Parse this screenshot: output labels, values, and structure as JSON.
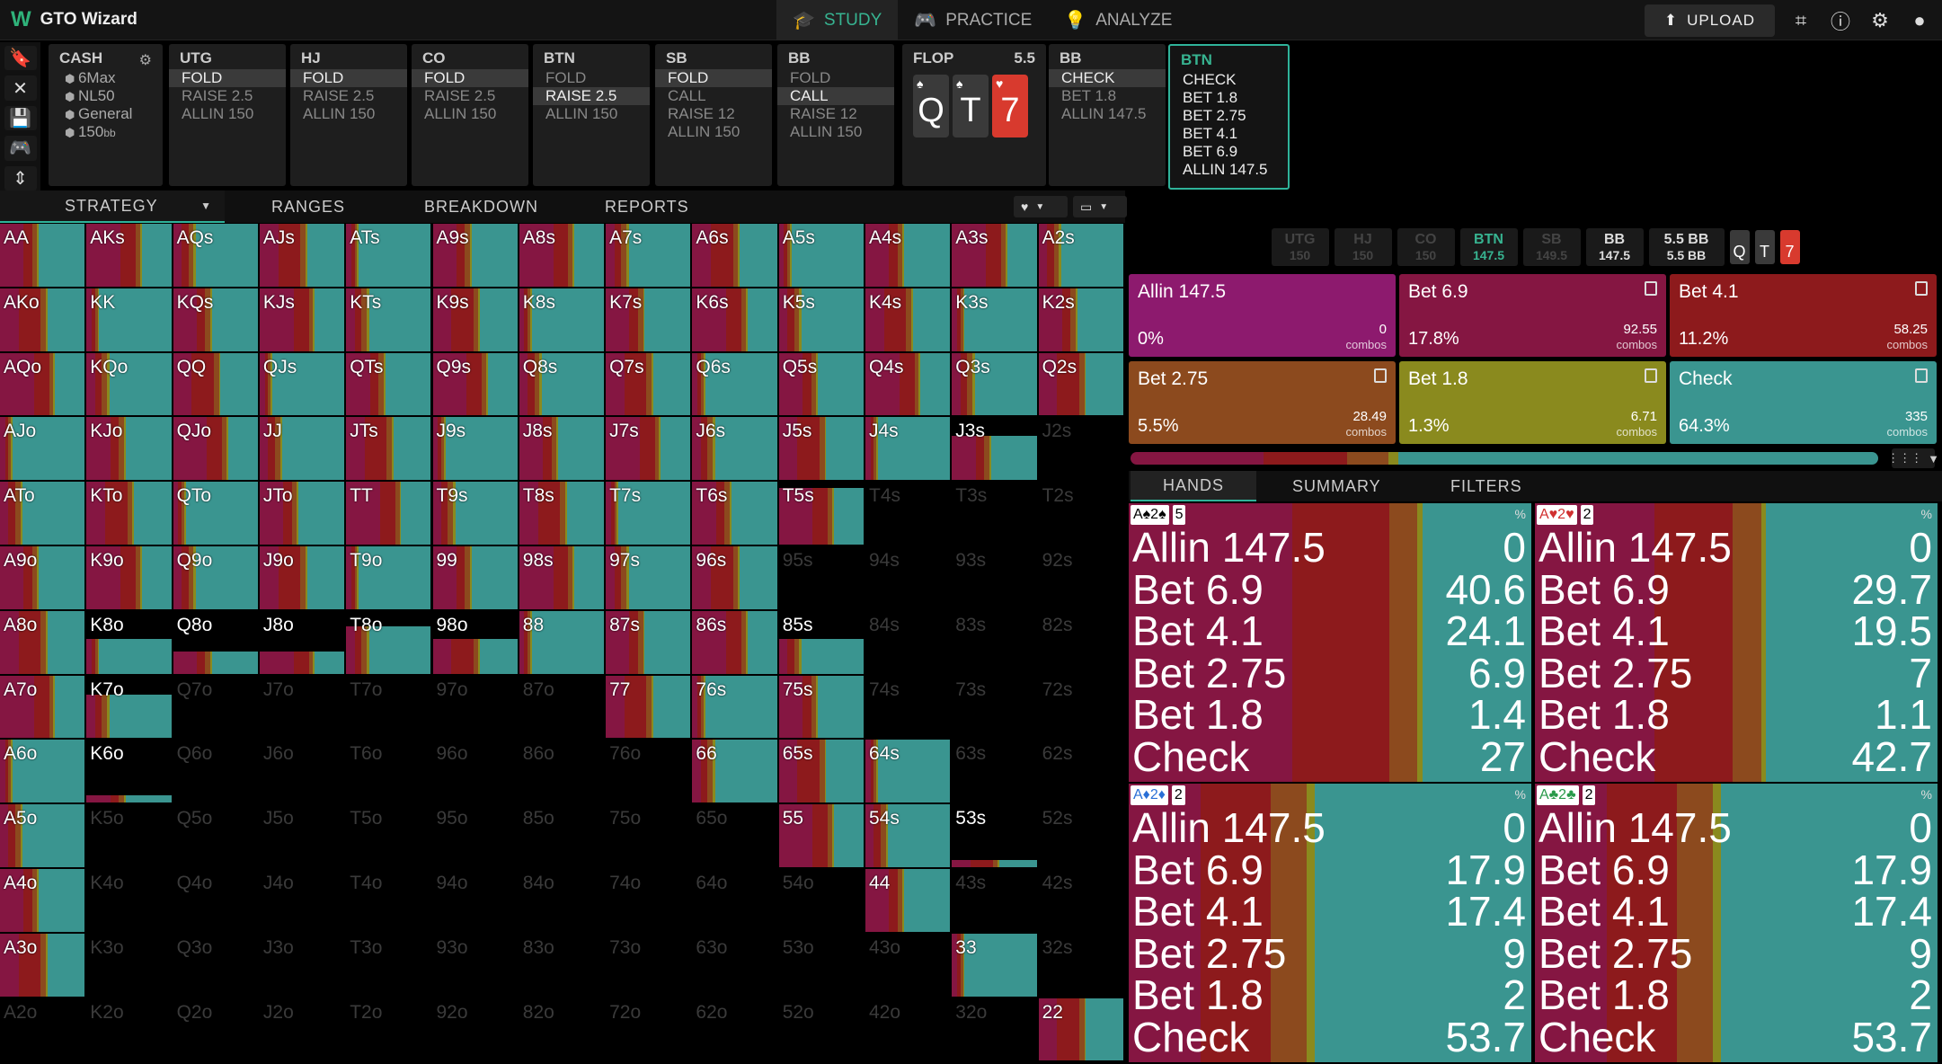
{
  "app": {
    "title": "GTO Wizard",
    "logo": "W"
  },
  "nav": {
    "tabs": [
      {
        "label": "STUDY",
        "icon": "study-cap-icon",
        "active": true
      },
      {
        "label": "PRACTICE",
        "icon": "gamepad-icon",
        "active": false
      },
      {
        "label": "ANALYZE",
        "icon": "bulb-icon",
        "active": false
      }
    ]
  },
  "topright": {
    "upload_label": "UPLOAD"
  },
  "cash": {
    "title": "CASH",
    "items": [
      "6Max",
      "NL50",
      "General",
      "150"
    ],
    "stack_unit": "bb"
  },
  "positions": [
    {
      "name": "UTG",
      "options": [
        "FOLD",
        "RAISE 2.5",
        "ALLIN 150"
      ],
      "selected": 0
    },
    {
      "name": "HJ",
      "options": [
        "FOLD",
        "RAISE 2.5",
        "ALLIN 150"
      ],
      "selected": 0
    },
    {
      "name": "CO",
      "options": [
        "FOLD",
        "RAISE 2.5",
        "ALLIN 150"
      ],
      "selected": 0
    },
    {
      "name": "BTN",
      "options": [
        "FOLD",
        "RAISE 2.5",
        "ALLIN 150"
      ],
      "selected": 1
    },
    {
      "name": "SB",
      "options": [
        "FOLD",
        "CALL",
        "RAISE 12",
        "ALLIN 150"
      ],
      "selected": 0
    },
    {
      "name": "BB",
      "options": [
        "FOLD",
        "CALL",
        "RAISE 12",
        "ALLIN 150"
      ],
      "selected": 1
    }
  ],
  "flop": {
    "label": "FLOP",
    "pot": "5.5",
    "cards": [
      {
        "rank": "Q",
        "suit": "♠",
        "red": false
      },
      {
        "rank": "T",
        "suit": "♠",
        "red": false
      },
      {
        "rank": "7",
        "suit": "♥",
        "red": true
      }
    ]
  },
  "bb_action": {
    "name": "BB",
    "options": [
      "CHECK",
      "BET 1.8",
      "ALLIN 147.5"
    ],
    "selected": 0
  },
  "btn_action": {
    "name": "BTN",
    "options": [
      "CHECK",
      "BET 1.8",
      "BET 2.75",
      "BET 4.1",
      "BET 6.9",
      "ALLIN 147.5"
    ]
  },
  "subtabs": {
    "strategy": "STRATEGY",
    "ranges": "RANGES",
    "breakdown": "BREAKDOWN",
    "reports": "REPORTS"
  },
  "colors": {
    "allin": "#8d1a6e",
    "bet69": "#851642",
    "bet41": "#8d1a1c",
    "bet275": "#8c4a1e",
    "bet18": "#8a8a1e",
    "check": "#3a9590"
  },
  "path": [
    {
      "name": "UTG",
      "v": "150"
    },
    {
      "name": "HJ",
      "v": "150"
    },
    {
      "name": "CO",
      "v": "150"
    },
    {
      "name": "BTN",
      "v": "147.5"
    },
    {
      "name": "SB",
      "v": "149.5"
    },
    {
      "name": "BB",
      "v": "147.5"
    },
    {
      "name": "5.5 BB",
      "v": "5.5 BB"
    }
  ],
  "actions": [
    {
      "name": "Allin 147.5",
      "pct": "0%",
      "combos": "0",
      "color": "#8d1a6e"
    },
    {
      "name": "Bet 6.9",
      "pct": "17.8%",
      "combos": "92.55",
      "color": "#851642"
    },
    {
      "name": "Bet 4.1",
      "pct": "11.2%",
      "combos": "58.25",
      "color": "#8d1a1c"
    },
    {
      "name": "Bet 2.75",
      "pct": "5.5%",
      "combos": "28.49",
      "color": "#8c4a1e"
    },
    {
      "name": "Bet 1.8",
      "pct": "1.3%",
      "combos": "6.71",
      "color": "#8a8a1e"
    },
    {
      "name": "Check",
      "pct": "64.3%",
      "combos": "335",
      "color": "#3a9590"
    }
  ],
  "combos_label": "combos",
  "rtabs": {
    "hands": "HANDS",
    "summary": "SUMMARY",
    "filters": "FILTERS"
  },
  "hands": [
    {
      "title": [
        "A♠2♠",
        "5"
      ],
      "suitcls": "",
      "rows": [
        [
          "Allin 147.5",
          "0"
        ],
        [
          "Bet 6.9",
          "40.6"
        ],
        [
          "Bet 4.1",
          "24.1"
        ],
        [
          "Bet 2.75",
          "6.9"
        ],
        [
          "Bet 1.8",
          "1.4"
        ],
        [
          "Check",
          "27"
        ]
      ],
      "mix": [
        0,
        40.6,
        24.1,
        6.9,
        1.4,
        27
      ]
    },
    {
      "title": [
        "A♥2♥",
        "2"
      ],
      "suitcls": "red",
      "rows": [
        [
          "Allin 147.5",
          "0"
        ],
        [
          "Bet 6.9",
          "29.7"
        ],
        [
          "Bet 4.1",
          "19.5"
        ],
        [
          "Bet 2.75",
          "7"
        ],
        [
          "Bet 1.8",
          "1.1"
        ],
        [
          "Check",
          "42.7"
        ]
      ],
      "mix": [
        0,
        29.7,
        19.5,
        7,
        1.1,
        42.7
      ]
    },
    {
      "title": [
        "A♦2♦",
        "2"
      ],
      "suitcls": "blue",
      "rows": [
        [
          "Allin 147.5",
          "0"
        ],
        [
          "Bet 6.9",
          "17.9"
        ],
        [
          "Bet 4.1",
          "17.4"
        ],
        [
          "Bet 2.75",
          "9"
        ],
        [
          "Bet 1.8",
          "2"
        ],
        [
          "Check",
          "53.7"
        ]
      ],
      "mix": [
        0,
        17.9,
        17.4,
        9,
        2,
        53.7
      ]
    },
    {
      "title": [
        "A♣2♣",
        "2"
      ],
      "suitcls": "grn",
      "rows": [
        [
          "Allin 147.5",
          "0"
        ],
        [
          "Bet 6.9",
          "17.9"
        ],
        [
          "Bet 4.1",
          "17.4"
        ],
        [
          "Bet 2.75",
          "9"
        ],
        [
          "Bet 1.8",
          "2"
        ],
        [
          "Check",
          "53.7"
        ]
      ],
      "mix": [
        0,
        17.9,
        17.4,
        9,
        2,
        53.7
      ]
    }
  ],
  "pct_symbol": "%",
  "grid": {
    "ranks": [
      "A",
      "K",
      "Q",
      "J",
      "T",
      "9",
      "8",
      "7",
      "6",
      "5",
      "4",
      "3",
      "2"
    ],
    "freq": [
      [
        1,
        1,
        1,
        1,
        1,
        1,
        1,
        1,
        1,
        1,
        1,
        1,
        1
      ],
      [
        1,
        1,
        1,
        1,
        1,
        1,
        1,
        1,
        1,
        1,
        1,
        1,
        1
      ],
      [
        1,
        1,
        1,
        1,
        1,
        1,
        1,
        1,
        1,
        1,
        1,
        1,
        1
      ],
      [
        1,
        1,
        1,
        1,
        1,
        1,
        1,
        1,
        1,
        1,
        1,
        0.7,
        0
      ],
      [
        1,
        1,
        1,
        1,
        1,
        1,
        1,
        1,
        1,
        0.9,
        0,
        0,
        0
      ],
      [
        1,
        1,
        1,
        1,
        1,
        1,
        1,
        1,
        1,
        0,
        0,
        0,
        0
      ],
      [
        1,
        0.55,
        0.35,
        0.35,
        0.75,
        0.55,
        1,
        1,
        1,
        0.55,
        0,
        0,
        0
      ],
      [
        1,
        0.7,
        0,
        0,
        0,
        0,
        0,
        1,
        1,
        1,
        0,
        0,
        0
      ],
      [
        1,
        0.12,
        0,
        0,
        0,
        0,
        0,
        0,
        1,
        1,
        1,
        0,
        0
      ],
      [
        1,
        0,
        0,
        0,
        0,
        0,
        0,
        0,
        0,
        1,
        1,
        0.12,
        0
      ],
      [
        1,
        0,
        0,
        0,
        0,
        0,
        0,
        0,
        0,
        0,
        1,
        0,
        0
      ],
      [
        1,
        0,
        0,
        0,
        0,
        0,
        0,
        0,
        0,
        0,
        0,
        1,
        0
      ],
      [
        0,
        0,
        0,
        0,
        0,
        0,
        0,
        0,
        0,
        0,
        0,
        0,
        1
      ]
    ]
  }
}
